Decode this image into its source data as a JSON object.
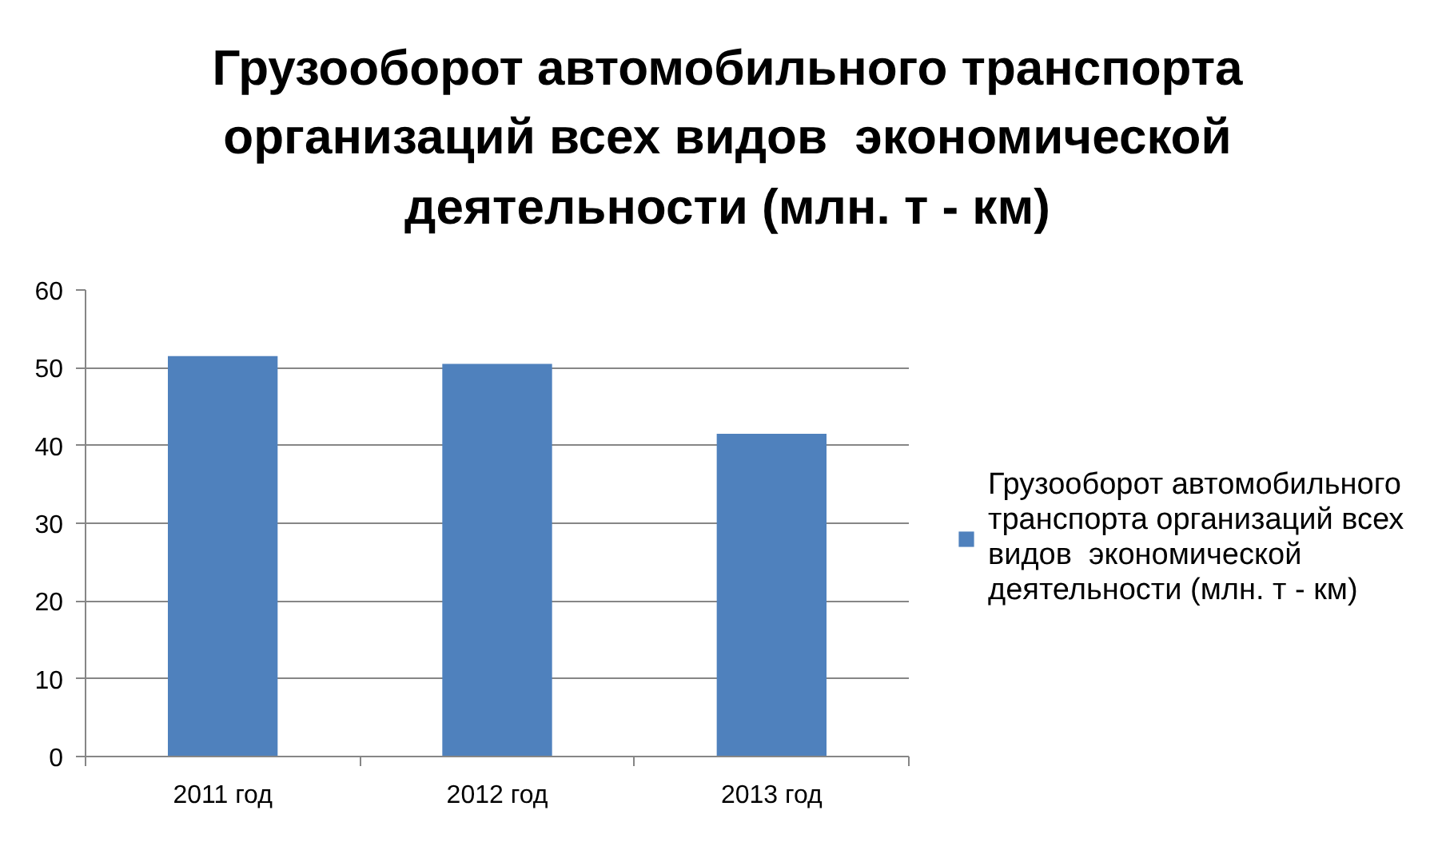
{
  "chart_data": {
    "type": "bar",
    "title": "Грузооборот автомобильного транспорта организаций всех видов  экономической деятельности (млн. т - км)",
    "categories": [
      "2011 год",
      "2012 год",
      "2013 год"
    ],
    "series": [
      {
        "name": "Грузооборот автомобильного транспорта организаций всех видов  экономической деятельности (млн. т - км)",
        "color": "#4f81bd",
        "values": [
          51.5,
          50.5,
          41.5
        ]
      }
    ],
    "ylim": [
      0,
      60
    ],
    "yticks": [
      0,
      10,
      20,
      30,
      40,
      50,
      60
    ],
    "grid": "y",
    "legend": "right"
  }
}
